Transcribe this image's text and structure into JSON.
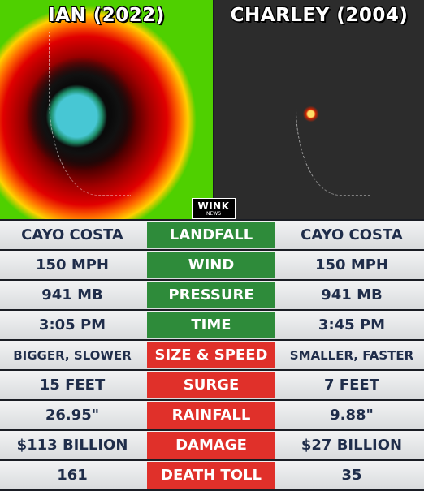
{
  "panels": {
    "left_title": "IAN (2022)",
    "right_title": "CHARLEY (2004)"
  },
  "logo": {
    "line1": "WINK",
    "line2": "NEWS"
  },
  "colors": {
    "label_green": "#2e8b3a",
    "label_red": "#e0302a",
    "value_text": "#1f2d4a"
  },
  "rows": [
    {
      "label": "LANDFALL",
      "ian": "CAYO COSTA",
      "charley": "CAYO COSTA",
      "label_color": "#2e8b3a"
    },
    {
      "label": "WIND",
      "ian": "150 MPH",
      "charley": "150 MPH",
      "label_color": "#2e8b3a"
    },
    {
      "label": "PRESSURE",
      "ian": "941 MB",
      "charley": "941 MB",
      "label_color": "#2e8b3a"
    },
    {
      "label": "TIME",
      "ian": "3:05 PM",
      "charley": "3:45 PM",
      "label_color": "#2e8b3a"
    },
    {
      "label": "SIZE & SPEED",
      "ian": "BIGGER, SLOWER",
      "charley": "SMALLER, FASTER",
      "label_color": "#e0302a"
    },
    {
      "label": "SURGE",
      "ian": "15 FEET",
      "charley": "7 FEET",
      "label_color": "#e0302a"
    },
    {
      "label": "RAINFALL",
      "ian": "26.95\"",
      "charley": "9.88\"",
      "label_color": "#e0302a"
    },
    {
      "label": "DAMAGE",
      "ian": "$113 BILLION",
      "charley": "$27 BILLION",
      "label_color": "#e0302a"
    },
    {
      "label": "DEATH TOLL",
      "ian": "161",
      "charley": "35",
      "label_color": "#e0302a"
    }
  ]
}
